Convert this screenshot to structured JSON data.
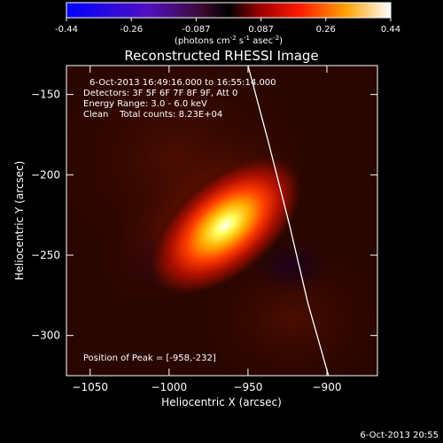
{
  "chart_data": {
    "type": "heatmap",
    "title": "Reconstructed RHESSI Image",
    "xlabel": "Heliocentric X (arcsec)",
    "ylabel": "Heliocentric Y (arcsec)",
    "xlim": [
      -1065,
      -868
    ],
    "ylim": [
      -325,
      -132
    ],
    "xticks": [
      -1050,
      -1000,
      -950,
      -900
    ],
    "yticks": [
      -150,
      -200,
      -250,
      -300
    ],
    "colorbar": {
      "min": -0.44,
      "max": 0.44,
      "ticks": [
        "-0.44",
        "-0.26",
        "-0.087",
        "0.087",
        "0.26",
        "0.44"
      ],
      "unit_main": "(photons cm",
      "unit_sup1": "-2",
      "unit_mid": " s",
      "unit_sup2": "-1",
      "unit_tail": " asec",
      "unit_sup3": "-2",
      "unit_close": ")"
    },
    "source": {
      "peak_x": -958,
      "peak_y": -232,
      "peak_value": 0.44,
      "major_axis_arcsec": 40,
      "minor_axis_arcsec": 18,
      "orientation_deg": 40
    },
    "limb_curve": [
      {
        "x": -950,
        "y": -132
      },
      {
        "x": -937,
        "y": -180
      },
      {
        "x": -924,
        "y": -230
      },
      {
        "x": -912,
        "y": -280
      },
      {
        "x": -899,
        "y": -325
      }
    ],
    "annotations": {
      "time_range": "6-Oct-2013 16:49:16.000 to 16:55:14.000",
      "detectors": "Detectors: 3F 5F 6F 7F 8F 9F, Att 0",
      "energy": "Energy Range: 3.0 - 6.0 keV",
      "clean": "Clean    Total counts: 8.23E+04",
      "peak": "Position of Peak = [-958,-232]"
    },
    "footer_timestamp": "6-Oct-2013 20:55"
  }
}
